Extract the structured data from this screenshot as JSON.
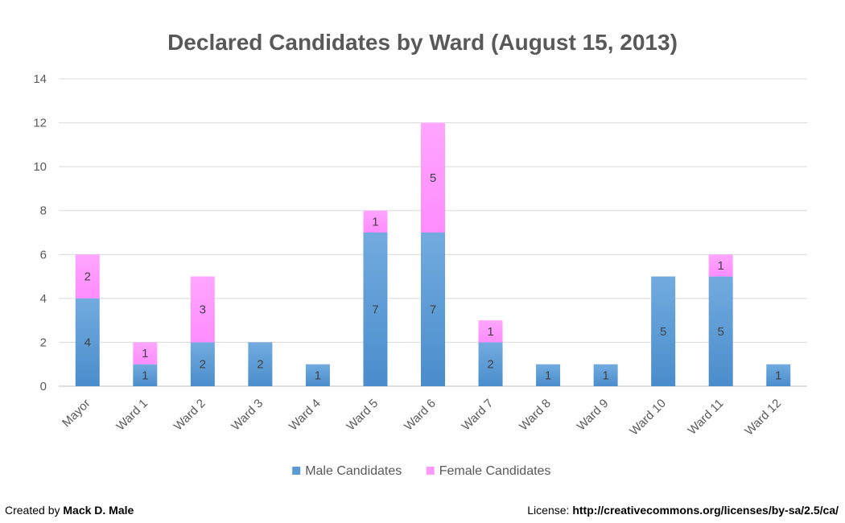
{
  "chart_data": {
    "type": "bar",
    "stacked": true,
    "title": "Declared Candidates by Ward (August 15, 2013)",
    "categories": [
      "Mayor",
      "Ward 1",
      "Ward 2",
      "Ward 3",
      "Ward 4",
      "Ward 5",
      "Ward 6",
      "Ward 7",
      "Ward 8",
      "Ward 9",
      "Ward 10",
      "Ward 11",
      "Ward 12"
    ],
    "series": [
      {
        "name": "Male Candidates",
        "values": [
          4,
          1,
          2,
          2,
          1,
          7,
          7,
          2,
          1,
          1,
          5,
          5,
          1
        ],
        "color": "#5B9BD5"
      },
      {
        "name": "Female Candidates",
        "values": [
          2,
          1,
          3,
          0,
          0,
          1,
          5,
          1,
          0,
          0,
          0,
          1,
          0
        ],
        "color": "#FF99FF"
      }
    ],
    "ylim": [
      0,
      14
    ],
    "yticks": [
      0,
      2,
      4,
      6,
      8,
      10,
      12,
      14
    ],
    "grid": true,
    "legend": "bottom"
  },
  "footer": {
    "created_prefix": "Created by ",
    "created_name": "Mack D. Male",
    "license_prefix": "License: ",
    "license_url": "http://creativecommons.org/licenses/by-sa/2.5/ca/"
  }
}
